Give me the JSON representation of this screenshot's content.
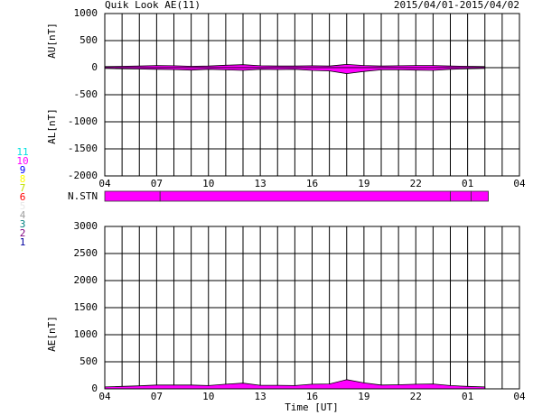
{
  "chart_data": [
    {
      "type": "area",
      "title": "Quik Look AE(11)",
      "date_range": "2015/04/01-2015/04/02",
      "ylabels": [
        "AU[nT]",
        "AL[nT]"
      ],
      "x": [
        4,
        5,
        6,
        7,
        8,
        9,
        10,
        11,
        12,
        13,
        14,
        15,
        16,
        17,
        18,
        19,
        20,
        21,
        22,
        23,
        24,
        25,
        26
      ],
      "series": [
        {
          "color": "#ff00ff",
          "values": [
            20,
            25,
            30,
            40,
            35,
            25,
            30,
            45,
            55,
            35,
            30,
            30,
            35,
            30,
            60,
            40,
            30,
            35,
            40,
            40,
            30,
            25,
            20
          ]
        },
        {
          "color": "#ff00ff",
          "values": [
            -15,
            -20,
            -25,
            -30,
            -35,
            -45,
            -30,
            -40,
            -50,
            -30,
            -35,
            -30,
            -50,
            -60,
            -110,
            -70,
            -40,
            -40,
            -45,
            -50,
            -30,
            -20,
            -15
          ]
        }
      ],
      "xlim": [
        4,
        28
      ],
      "xticks": [
        {
          "value": 4,
          "label": "04"
        },
        {
          "value": 7,
          "label": "07"
        },
        10,
        13,
        16,
        19,
        22,
        {
          "value": 25,
          "label": "01"
        },
        {
          "value": 28,
          "label": "04"
        }
      ],
      "xgrid": [
        4,
        5,
        6,
        7,
        8,
        9,
        10,
        11,
        12,
        13,
        14,
        15,
        16,
        17,
        18,
        19,
        20,
        21,
        22,
        23,
        24,
        25,
        26,
        27,
        28
      ],
      "ylim": [
        -2000,
        1000
      ],
      "yticks": [
        -2000,
        -1500,
        -1000,
        -500,
        0,
        500,
        1000
      ],
      "grid": true
    },
    {
      "type": "histogram",
      "label": "N.STN",
      "bins": [
        4,
        7.2,
        24,
        25.2,
        26.2
      ],
      "values": [
        10,
        10,
        10,
        10
      ],
      "color": "#ff00ff",
      "station_legend": [
        {
          "label": "11",
          "color": "#00e0e0"
        },
        {
          "label": "10",
          "color": "#ff00ff"
        },
        {
          "label": "9",
          "color": "#0000ff"
        },
        {
          "label": "8",
          "color": "#ffff00"
        },
        {
          "label": "7",
          "color": "#c0e000"
        },
        {
          "label": "6",
          "color": "#ff0000"
        },
        {
          "label": "5",
          "color": "#e8e8e8"
        },
        {
          "label": "4",
          "color": "#a0a0a0"
        },
        {
          "label": "3",
          "color": "#008080"
        },
        {
          "label": "2",
          "color": "#800080"
        },
        {
          "label": "1",
          "color": "#0000a0"
        }
      ]
    },
    {
      "type": "area",
      "ylabel": "AE[nT]",
      "xlabel": "Time [UT]",
      "x": [
        4,
        5,
        6,
        7,
        8,
        9,
        10,
        11,
        12,
        13,
        14,
        15,
        16,
        17,
        18,
        19,
        20,
        21,
        22,
        23,
        24,
        25,
        26
      ],
      "series": [
        {
          "color": "#ff00ff",
          "values": [
            35,
            45,
            55,
            70,
            70,
            70,
            60,
            85,
            105,
            65,
            65,
            60,
            85,
            90,
            170,
            110,
            70,
            75,
            85,
            90,
            60,
            45,
            35
          ]
        }
      ],
      "xlim": [
        4,
        28
      ],
      "xticks": [
        {
          "value": 4,
          "label": "04"
        },
        {
          "value": 7,
          "label": "07"
        },
        10,
        13,
        16,
        19,
        22,
        {
          "value": 25,
          "label": "01"
        },
        {
          "value": 28,
          "label": "04"
        }
      ],
      "ylim": [
        0,
        3000
      ],
      "yticks": [
        0,
        500,
        1000,
        1500,
        2000,
        2500,
        3000
      ],
      "grid": true
    }
  ]
}
